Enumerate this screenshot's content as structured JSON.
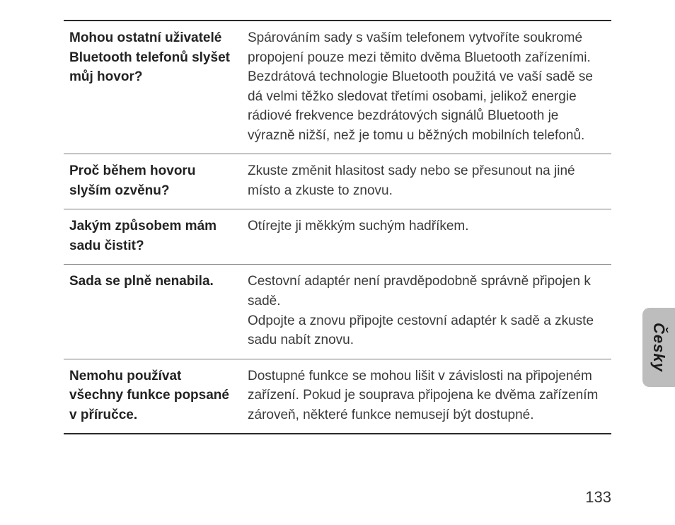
{
  "page_number": "133",
  "side_tab": "Česky",
  "faq": [
    {
      "q": "Mohou ostatní uživatelé Bluetooth telefonů slyšet můj hovor?",
      "a": "Spárováním sady s vaším telefonem vytvoříte soukromé propojení pouze mezi těmito dvěma Bluetooth zařízeními. Bezdrátová technologie Bluetooth použitá ve vaší sadě se dá velmi těžko sledovat třetími osobami, jelikož energie rádiové frekvence bezdrátových signálů Bluetooth je výrazně nižší, než je tomu u běžných mobilních telefonů."
    },
    {
      "q": "Proč během hovoru slyším ozvěnu?",
      "a": "Zkuste změnit hlasitost sady nebo se přesunout na jiné místo a zkuste to znovu."
    },
    {
      "q": "Jakým způsobem mám sadu čistit?",
      "a": "Otírejte ji měkkým suchým hadříkem."
    },
    {
      "q": "Sada se plně nenabila.",
      "a": "Cestovní adaptér není pravděpodobně správně připojen k sadě.\nOdpojte a znovu připojte cestovní adaptér k sadě a zkuste sadu nabít znovu."
    },
    {
      "q": "Nemohu používat všechny funkce popsané v příručce.",
      "a": "Dostupné funkce se mohou lišit v závislosti na připojeném zařízení. Pokud je souprava připojena ke dvěma zařízením zároveň, některé funkce nemusejí být dostupné."
    }
  ]
}
